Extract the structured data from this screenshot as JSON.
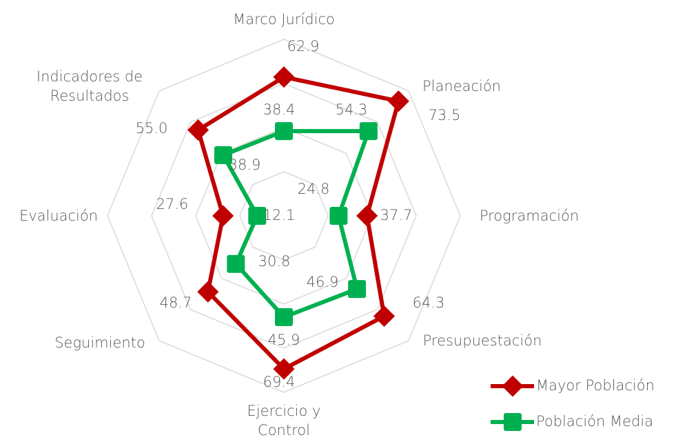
{
  "chart_data": {
    "type": "radar",
    "categories": [
      "Marco Jurídico",
      "Planeación",
      "Programación",
      "Presupuestación",
      "Ejercicio y Control",
      "Seguimiento",
      "Evaluación",
      "Indicadores de Resultados"
    ],
    "series": [
      {
        "name": "Mayor Población",
        "color": "#c00000",
        "values": [
          62.9,
          73.5,
          37.7,
          64.3,
          69.4,
          48.7,
          27.6,
          55.0
        ],
        "value_labels": [
          "62.9",
          "73.5",
          "37.7",
          "64.3",
          "69.4",
          "48.7",
          "27.6",
          "55.0"
        ]
      },
      {
        "name": "Población Media",
        "color": "#00b050",
        "values": [
          38.4,
          54.3,
          24.8,
          46.9,
          45.9,
          30.8,
          12.1,
          38.9
        ],
        "value_labels": [
          "38.4",
          "54.3",
          "24.8",
          "46.9",
          "45.9",
          "30.8",
          "12.1",
          "38.9"
        ]
      }
    ],
    "ylim": [
      0,
      80
    ],
    "yticks": [
      0,
      20,
      40,
      60,
      80
    ],
    "grid": true,
    "legend": "bottom-right"
  }
}
